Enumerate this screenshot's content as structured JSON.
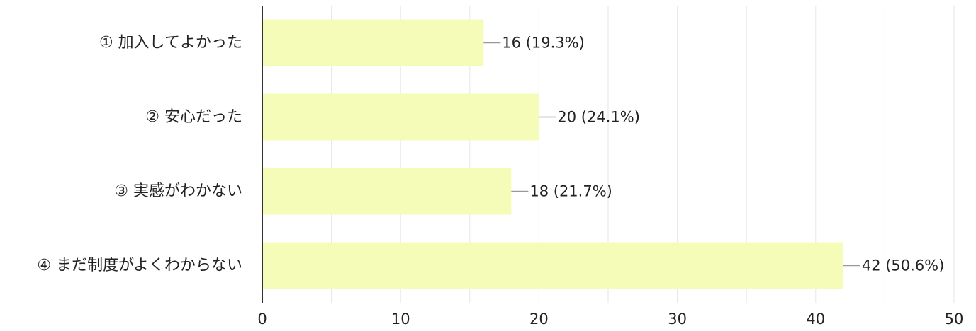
{
  "chart_data": {
    "type": "bar",
    "orientation": "horizontal",
    "categories": [
      "① 加入してよかった",
      "② 安心だった",
      "③ 実感がわかない",
      "④ まだ制度がよくわからない"
    ],
    "values": [
      16,
      20,
      18,
      42
    ],
    "data_labels": [
      "16 (19.3%)",
      "20 (24.1%)",
      "18 (21.7%)",
      "42 (50.6%)"
    ],
    "x_ticks": [
      "0",
      "10",
      "20",
      "30",
      "40",
      "50"
    ],
    "xlim": [
      0,
      50
    ],
    "grid": true,
    "legend": false,
    "title": "",
    "xlabel": "",
    "ylabel": "",
    "colors": {
      "bar": "#f4fcb8",
      "grid": "#e6e6e6",
      "axis": "#333333",
      "leader": "#999999"
    }
  }
}
